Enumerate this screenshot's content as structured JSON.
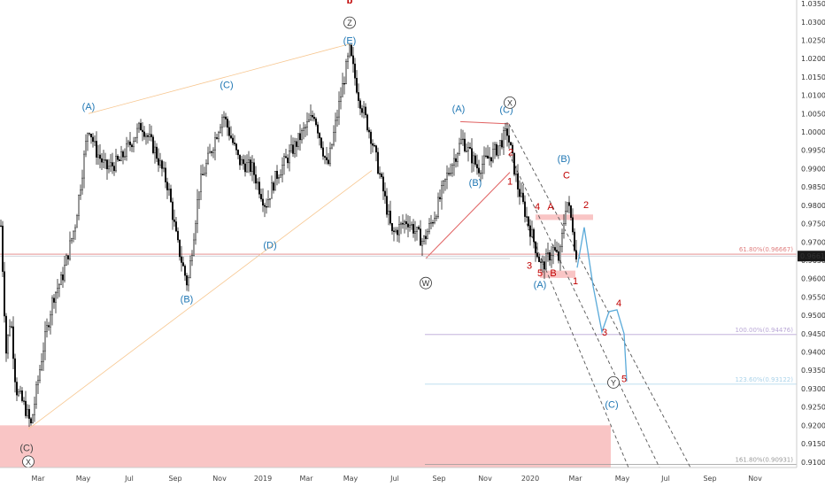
{
  "colors": {
    "candle": "#000000",
    "blue_label": "#1f77b4",
    "red_label": "#c00000",
    "pink_zone": "#f7b2b2",
    "orange_line": "#f7c68f",
    "trend_red": "#e06060",
    "channel_dash": "#555555",
    "projection": "#5aaad9",
    "fib_purple": "#b9a7d6",
    "fib_blue": "#aad3ea",
    "price_line": "#c0c8d0"
  },
  "chart_data": {
    "type": "candlestick",
    "ylim": [
      0.9085,
      1.0355
    ],
    "y_ticks": [
      "1.03500",
      "1.03000",
      "1.02500",
      "1.02000",
      "1.01500",
      "1.01000",
      "1.00500",
      "1.00000",
      "0.99500",
      "0.99000",
      "0.98500",
      "0.98000",
      "0.97500",
      "0.97000",
      "0.96500",
      "0.96000",
      "0.95500",
      "0.95000",
      "0.94500",
      "0.94000",
      "0.93500",
      "0.93000",
      "0.92500",
      "0.92000",
      "0.91500",
      "0.91000"
    ],
    "x_ticks": [
      "Mar",
      "May",
      "Jul",
      "Sep",
      "Nov",
      "2019",
      "Mar",
      "May",
      "Jul",
      "Sep",
      "Nov",
      "2020",
      "Mar",
      "May",
      "Jul",
      "Sep",
      "Nov"
    ],
    "current_price": "0.96615",
    "price_path": [
      [
        0.975,
        0.9
      ],
      [
        0.94,
        7
      ],
      [
        0.95,
        12
      ],
      [
        0.93,
        18
      ],
      [
        0.925,
        28
      ],
      [
        0.92,
        35
      ],
      [
        0.94,
        48
      ],
      [
        0.955,
        60
      ],
      [
        0.96,
        70
      ],
      [
        0.975,
        85
      ],
      [
        1.002,
        100
      ],
      [
        0.995,
        108
      ],
      [
        0.99,
        120
      ],
      [
        0.992,
        135
      ],
      [
        1.002,
        160
      ],
      [
        0.995,
        175
      ],
      [
        0.985,
        190
      ],
      [
        0.97,
        200
      ],
      [
        0.958,
        212
      ],
      [
        0.985,
        225
      ],
      [
        1.005,
        252
      ],
      [
        0.992,
        270
      ],
      [
        0.99,
        285
      ],
      [
        0.98,
        300
      ],
      [
        0.988,
        312
      ],
      [
        0.995,
        330
      ],
      [
        1.005,
        355
      ],
      [
        0.99,
        370
      ],
      [
        1.01,
        385
      ],
      [
        1.022,
        395
      ],
      [
        1.01,
        405
      ],
      [
        0.998,
        420
      ],
      [
        0.985,
        432
      ],
      [
        0.972,
        443
      ],
      [
        0.976,
        460
      ],
      [
        0.97,
        478
      ],
      [
        0.978,
        492
      ],
      [
        0.988,
        505
      ],
      [
        0.998,
        522
      ],
      [
        0.99,
        540
      ],
      [
        0.995,
        560
      ],
      [
        1.0,
        573
      ],
      [
        0.985,
        585
      ],
      [
        0.975,
        597
      ],
      [
        0.963,
        612
      ],
      [
        0.968,
        625
      ],
      [
        0.965,
        632
      ],
      [
        0.982,
        640
      ],
      [
        0.974,
        647
      ],
      [
        0.963,
        652
      ]
    ],
    "labels": [
      {
        "text": "b",
        "color": "red",
        "x": 395,
        "y": 1.035
      },
      {
        "text": "(E)",
        "color": "blue",
        "x": 395,
        "y": 1.024
      },
      {
        "text": "(A)",
        "color": "blue",
        "x": 100,
        "y": 1.006
      },
      {
        "text": "(C)",
        "color": "blue",
        "x": 256,
        "y": 1.012
      },
      {
        "text": "(B)",
        "color": "blue",
        "x": 211,
        "y": 0.9535
      },
      {
        "text": "(D)",
        "color": "blue",
        "x": 305,
        "y": 0.9683
      },
      {
        "text": "(A)",
        "color": "blue",
        "x": 518,
        "y": 1.0054
      },
      {
        "text": "(C)",
        "color": "blue",
        "x": 572,
        "y": 1.0052
      },
      {
        "text": "(B)",
        "color": "blue",
        "x": 537,
        "y": 0.9853
      },
      {
        "text": "(B)",
        "color": "blue",
        "x": 637,
        "y": 0.9918
      },
      {
        "text": "(A)",
        "color": "blue",
        "x": 610,
        "y": 0.9575
      },
      {
        "text": "(C)",
        "color": "blue",
        "x": 691,
        "y": 0.9248
      },
      {
        "text": "(C)",
        "color": "dark",
        "x": 30,
        "y": 0.913
      },
      {
        "text": "2",
        "color": "red",
        "x": 577,
        "y": 0.9936
      },
      {
        "text": "1",
        "color": "red",
        "x": 576,
        "y": 0.9857
      },
      {
        "text": "4",
        "color": "red",
        "x": 607,
        "y": 0.9788
      },
      {
        "text": "A",
        "color": "red",
        "x": 622,
        "y": 0.9788
      },
      {
        "text": "C",
        "color": "red",
        "x": 640,
        "y": 0.9873
      },
      {
        "text": "2",
        "color": "red",
        "x": 662,
        "y": 0.9793
      },
      {
        "text": "3",
        "color": "red",
        "x": 598,
        "y": 0.9627
      },
      {
        "text": "5",
        "color": "red",
        "x": 610,
        "y": 0.9607
      },
      {
        "text": "B",
        "color": "red",
        "x": 625,
        "y": 0.9607
      },
      {
        "text": "1",
        "color": "red",
        "x": 650,
        "y": 0.9585
      },
      {
        "text": "4",
        "color": "red",
        "x": 699,
        "y": 0.9525
      },
      {
        "text": "3",
        "color": "red",
        "x": 683,
        "y": 0.9445
      },
      {
        "text": "5",
        "color": "red",
        "x": 705,
        "y": 0.9318
      }
    ],
    "circled_labels": [
      {
        "text": "Z",
        "x": 395,
        "y": 1.0298
      },
      {
        "text": "X",
        "x": 576,
        "y": 1.008
      },
      {
        "text": "W",
        "x": 481,
        "y": 0.9588
      },
      {
        "text": "Y",
        "x": 693,
        "y": 0.9317
      },
      {
        "text": "X",
        "x": 32,
        "y": 0.9101
      }
    ],
    "fib_levels": [
      {
        "label": "61.80%(0.96667)",
        "value": 0.96667,
        "color": "red"
      },
      {
        "label": "100.00%(0.94476)",
        "value": 0.94476,
        "color": "purple"
      },
      {
        "label": "123.60%(0.93122)",
        "value": 0.93122,
        "color": "blue"
      },
      {
        "label": "161.80%(0.90931)",
        "value": 0.90931,
        "color": "dark"
      }
    ],
    "zones": [
      {
        "x1": 0,
        "x2": 690,
        "y1": 0.92,
        "y2": 0.9085
      },
      {
        "x1": 605,
        "x2": 670,
        "y1": 0.9775,
        "y2": 0.976
      },
      {
        "x1": 610,
        "x2": 650,
        "y1": 0.9622,
        "y2": 0.9602
      }
    ]
  }
}
